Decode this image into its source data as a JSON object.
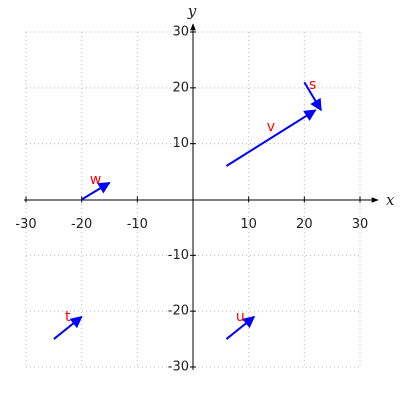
{
  "chart_data": {
    "type": "vector",
    "x_label": "x",
    "y_label": "y",
    "xlim": [
      -30,
      30
    ],
    "ylim": [
      -30,
      30
    ],
    "xticks": [
      -30,
      -20,
      -10,
      10,
      20,
      30
    ],
    "yticks": [
      -30,
      -20,
      -10,
      10,
      20,
      30
    ],
    "grid": true,
    "color": "#0000ff",
    "label_color": "#ff0000",
    "vectors": [
      {
        "name": "v",
        "x": [
          6,
          22
        ],
        "y": [
          6,
          16
        ]
      },
      {
        "name": "s",
        "x": [
          20,
          23
        ],
        "y": [
          21,
          16
        ]
      },
      {
        "name": "w",
        "x": [
          -20,
          -15
        ],
        "y": [
          0,
          3
        ]
      },
      {
        "name": "t",
        "x": [
          -25,
          -20
        ],
        "y": [
          -25,
          -21
        ]
      },
      {
        "name": "u",
        "x": [
          6,
          11
        ],
        "y": [
          -25,
          -21
        ]
      }
    ]
  }
}
